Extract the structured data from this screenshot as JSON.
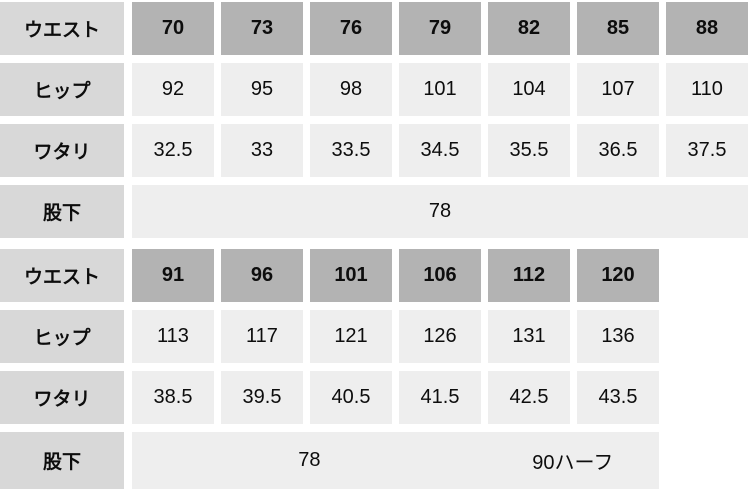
{
  "colors": {
    "label_bg": "#d8d8d8",
    "header_bg": "#b3b3b3",
    "cell_bg": "#eeeeee",
    "gutter": "#ffffff",
    "text": "#0d0d0d"
  },
  "tables": [
    {
      "rows": [
        {
          "label": "ウエスト",
          "values": [
            "70",
            "73",
            "76",
            "79",
            "82",
            "85",
            "88"
          ]
        },
        {
          "label": "ヒップ",
          "values": [
            "92",
            "95",
            "98",
            "101",
            "104",
            "107",
            "110"
          ]
        },
        {
          "label": "ワタリ",
          "values": [
            "32.5",
            "33",
            "33.5",
            "34.5",
            "35.5",
            "36.5",
            "37.5"
          ]
        },
        {
          "label": "股下",
          "values": [
            "78"
          ]
        }
      ]
    },
    {
      "rows": [
        {
          "label": "ウエスト",
          "values": [
            "91",
            "96",
            "101",
            "106",
            "112",
            "120"
          ]
        },
        {
          "label": "ヒップ",
          "values": [
            "113",
            "117",
            "121",
            "126",
            "131",
            "136"
          ]
        },
        {
          "label": "ワタリ",
          "values": [
            "38.5",
            "39.5",
            "40.5",
            "41.5",
            "42.5",
            "43.5"
          ]
        },
        {
          "label": "股下",
          "values": [
            "78",
            "90ハーフ"
          ]
        }
      ]
    }
  ]
}
